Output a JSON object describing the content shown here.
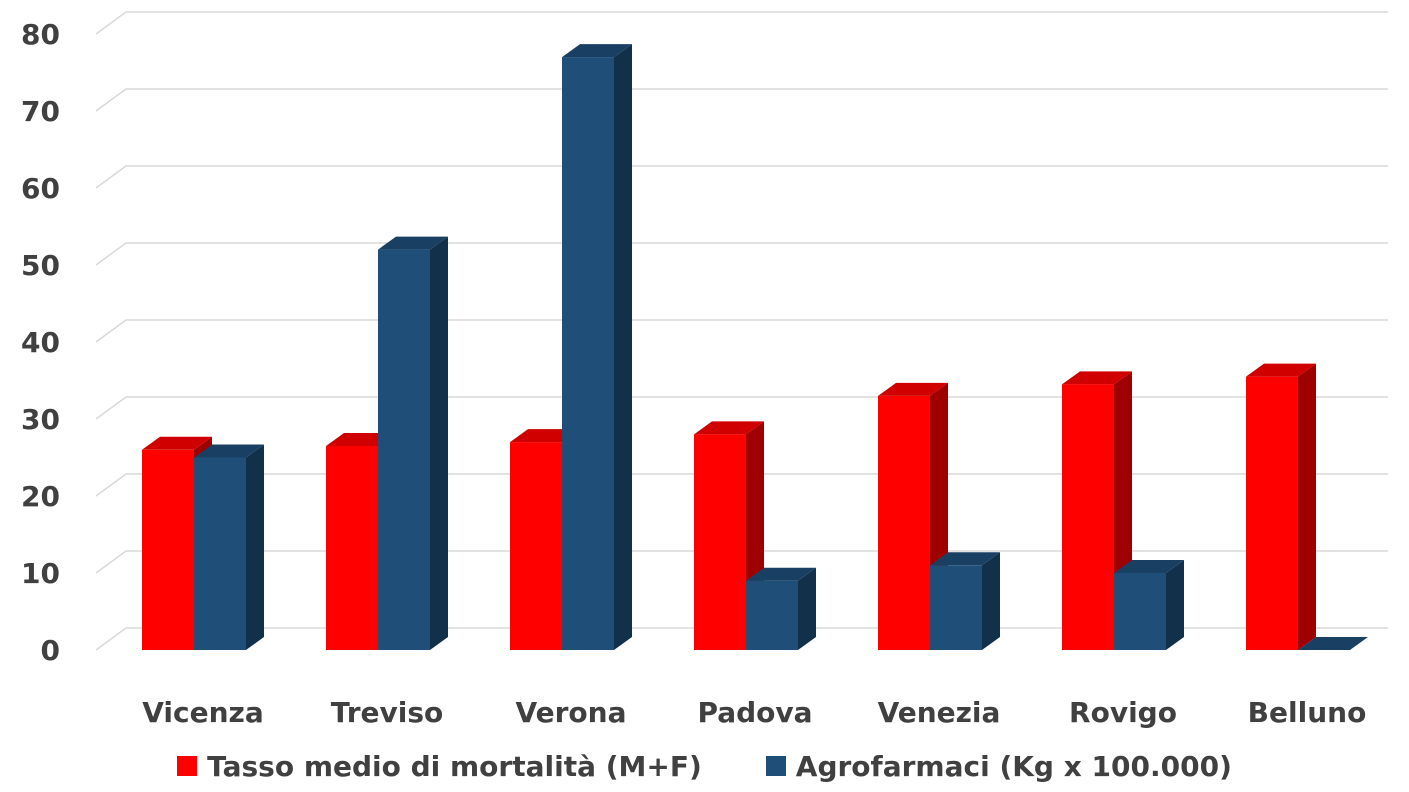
{
  "chart_data": {
    "type": "bar",
    "style": "3d-clustered-column",
    "categories": [
      "Vicenza",
      "Treviso",
      "Verona",
      "Padova",
      "Venezia",
      "Rovigo",
      "Belluno"
    ],
    "series": [
      {
        "name": "Tasso medio di mortalità (M+F)",
        "color": "#ff0000",
        "values": [
          26,
          26.5,
          27,
          28,
          33,
          34.5,
          35.5
        ]
      },
      {
        "name": "Agrofarmaci (Kg x 100.000)",
        "color": "#1f4e79",
        "values": [
          25,
          52,
          77,
          9,
          11,
          10,
          0
        ]
      }
    ],
    "yticks": [
      "0",
      "10",
      "20",
      "30",
      "40",
      "50",
      "60",
      "70",
      "80"
    ],
    "ylim": [
      0,
      80
    ],
    "grid": true,
    "legend_position": "bottom"
  }
}
